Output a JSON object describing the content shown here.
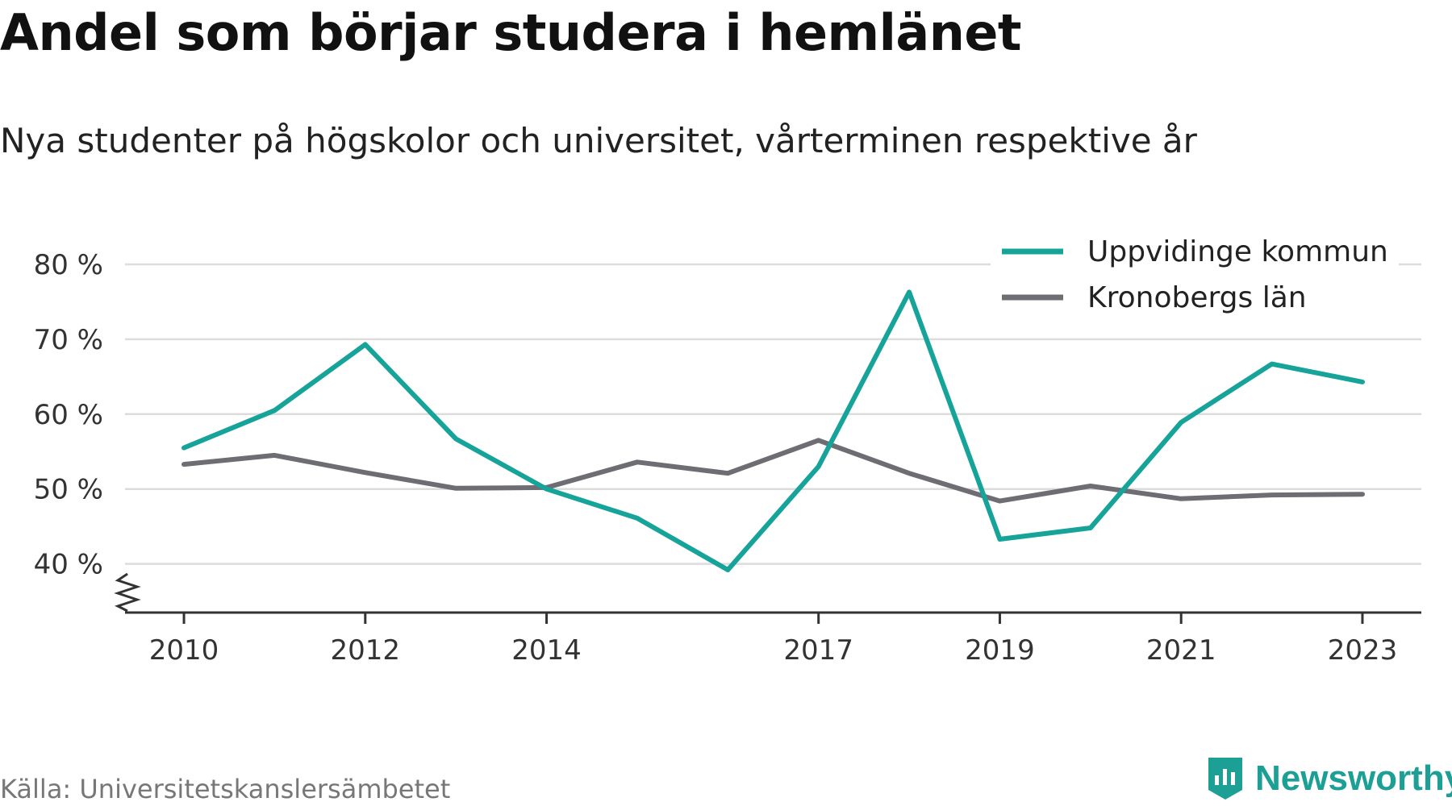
{
  "title": "Andel som börjar studera i hemlänet",
  "subtitle": "Nya studenter på högskolor och universitet, vårterminen respektive år",
  "source": "Källa: Universitetskanslersämbetet",
  "brand": "Newsworthy",
  "colors": {
    "primary": "#16a39a",
    "secondary": "#6e6d73",
    "grid": "#dcdcdc",
    "axis": "#333333",
    "brand": "#1c9f94"
  },
  "chart_data": {
    "type": "line",
    "x": [
      2010,
      2011,
      2012,
      2013,
      2014,
      2015,
      2016,
      2017,
      2018,
      2019,
      2020,
      2021,
      2022,
      2023
    ],
    "x_ticks": [
      {
        "value": 2010,
        "label": "2010"
      },
      {
        "value": 2012,
        "label": "2012"
      },
      {
        "value": 2014,
        "label": "2014"
      },
      {
        "value": 2017,
        "label": "2017"
      },
      {
        "value": 2019,
        "label": "2019"
      },
      {
        "value": 2021,
        "label": "2021"
      },
      {
        "value": 2023,
        "label": "2023"
      }
    ],
    "y_ticks": [
      {
        "value": 40,
        "label": "40 %"
      },
      {
        "value": 50,
        "label": "50 %"
      },
      {
        "value": 60,
        "label": "60 %"
      },
      {
        "value": 70,
        "label": "70 %"
      },
      {
        "value": 80,
        "label": "80 %"
      }
    ],
    "ylim": [
      33.5,
      80
    ],
    "xlim": [
      2009.35,
      2023.65
    ],
    "y_axis_break": true,
    "grid": true,
    "legend_position": "top-right",
    "series": [
      {
        "name": "Uppvidinge kommun",
        "color": "#16a39a",
        "values": [
          55.5,
          60.5,
          69.3,
          56.7,
          50.0,
          46.1,
          39.2,
          53.0,
          76.3,
          43.3,
          44.8,
          58.9,
          66.7,
          64.3
        ]
      },
      {
        "name": "Kronobergs län",
        "color": "#6e6d73",
        "values": [
          53.3,
          54.5,
          52.2,
          50.1,
          50.2,
          53.6,
          52.1,
          56.5,
          52.1,
          48.4,
          50.4,
          48.7,
          49.2,
          49.3
        ]
      }
    ]
  }
}
